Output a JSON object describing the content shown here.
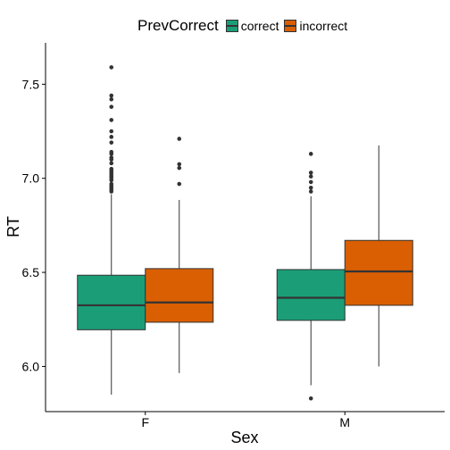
{
  "chart_data": {
    "type": "boxplot",
    "xlabel": "Sex",
    "ylabel": "RT",
    "categories": [
      "F",
      "M"
    ],
    "ylim": [
      5.76,
      7.72
    ],
    "yticks": [
      6.0,
      6.5,
      7.0,
      7.5
    ],
    "ytick_labels": [
      "6.0",
      "6.5",
      "7.0",
      "7.5"
    ],
    "grid": false,
    "legend": {
      "title": "PrevCorrect",
      "position": "top",
      "items": [
        {
          "label": "correct",
          "color": "#1b9e77"
        },
        {
          "label": "incorrect",
          "color": "#d95f02"
        }
      ]
    },
    "series": [
      {
        "name": "correct",
        "color": "#1b9e77",
        "boxes": [
          {
            "category": "F",
            "whisker_low": 5.85,
            "q1": 6.195,
            "median": 6.325,
            "q3": 6.485,
            "whisker_high": 6.915,
            "outliers": [
              7.59,
              7.44,
              7.42,
              7.38,
              7.31,
              7.25,
              7.22,
              7.19,
              7.14,
              7.13,
              7.11,
              7.1,
              7.08,
              7.05,
              7.04,
              7.03,
              7.02,
              7.01,
              7.0,
              6.99,
              6.97,
              6.96,
              6.95,
              6.94,
              6.93
            ]
          },
          {
            "category": "M",
            "whisker_low": 5.9,
            "q1": 6.245,
            "median": 6.365,
            "q3": 6.515,
            "whisker_high": 6.905,
            "outliers": [
              7.13,
              7.03,
              7.01,
              6.98,
              6.95,
              6.93,
              5.83
            ]
          }
        ]
      },
      {
        "name": "incorrect",
        "color": "#d95f02",
        "boxes": [
          {
            "category": "F",
            "whisker_low": 5.965,
            "q1": 6.235,
            "median": 6.34,
            "q3": 6.52,
            "whisker_high": 6.885,
            "outliers": [
              7.21,
              7.075,
              7.055,
              6.97
            ]
          },
          {
            "category": "M",
            "whisker_low": 6.0,
            "q1": 6.325,
            "median": 6.505,
            "q3": 6.67,
            "whisker_high": 7.175,
            "outliers": []
          }
        ]
      }
    ]
  }
}
